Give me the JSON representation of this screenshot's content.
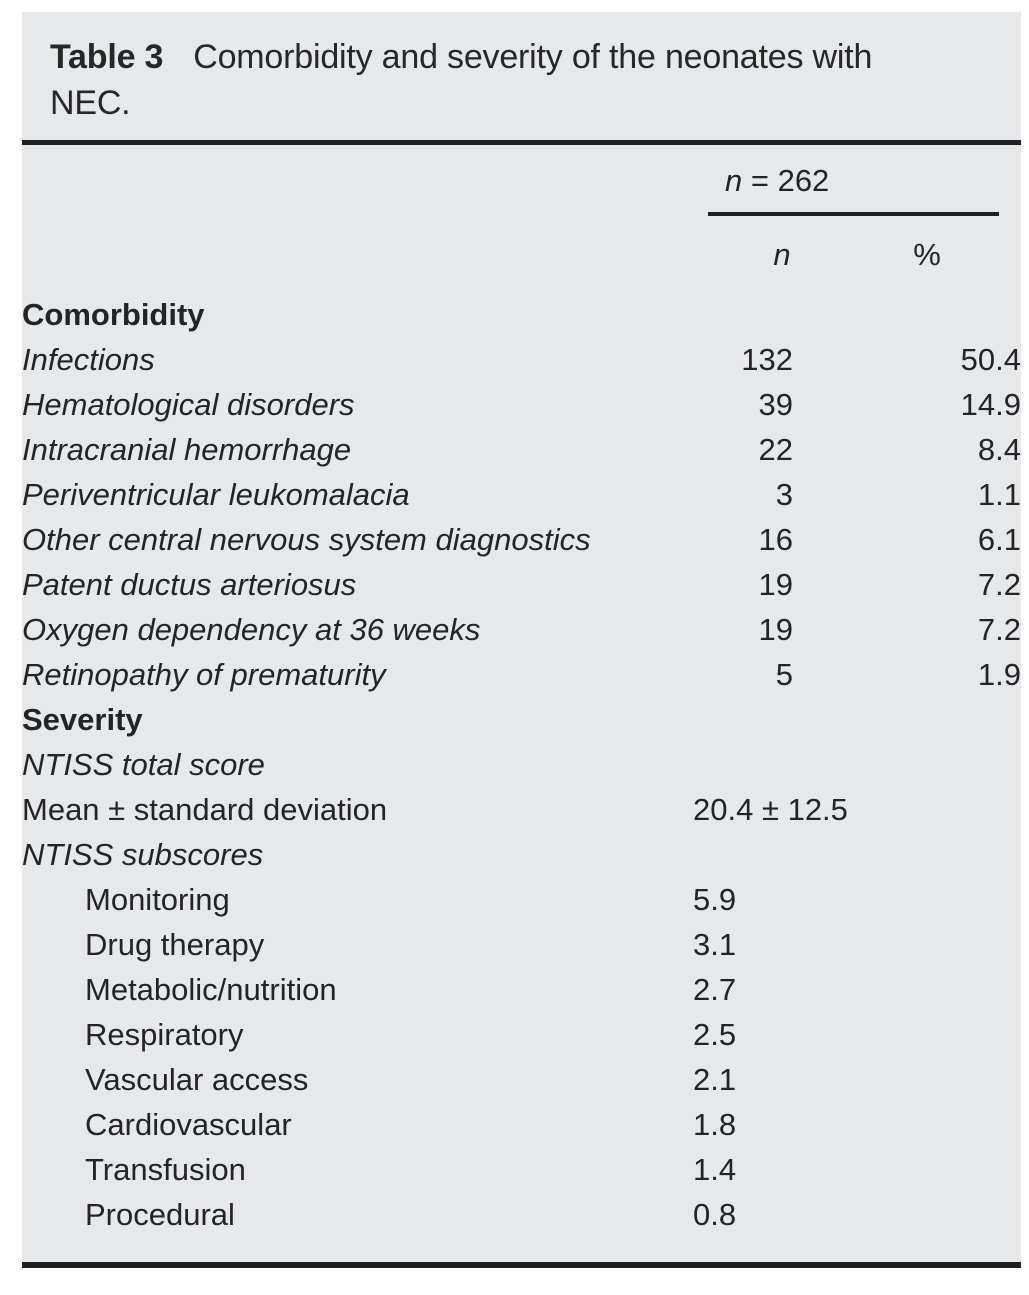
{
  "table": {
    "caption": {
      "label": "Table 3",
      "text": "Comorbidity and severity of the neonates with NEC."
    },
    "group_header": {
      "symbol": "n",
      "equals_value": " = 262"
    },
    "columns": {
      "n_header": "n",
      "pct_header": "%"
    },
    "rows": [
      {
        "label": "Comorbidity",
        "style": "bold",
        "n": "",
        "pct": ""
      },
      {
        "label": "Infections",
        "style": "italic",
        "n": "132",
        "pct": "50.4"
      },
      {
        "label": "Hematological disorders",
        "style": "italic",
        "n": "39",
        "pct": "14.9"
      },
      {
        "label": "Intracranial hemorrhage",
        "style": "italic",
        "n": "22",
        "pct": "8.4"
      },
      {
        "label": "Periventricular leukomalacia",
        "style": "italic",
        "n": "3",
        "pct": "1.1"
      },
      {
        "label": "Other central nervous system diagnostics",
        "style": "italic",
        "n": "16",
        "pct": "6.1"
      },
      {
        "label": "Patent ductus arteriosus",
        "style": "italic",
        "n": "19",
        "pct": "7.2"
      },
      {
        "label": "Oxygen dependency at 36 weeks",
        "style": "italic",
        "n": "19",
        "pct": "7.2"
      },
      {
        "label": "Retinopathy of prematurity",
        "style": "italic",
        "n": "5",
        "pct": "1.9"
      },
      {
        "label": "Severity",
        "style": "bold",
        "n": "",
        "pct": ""
      },
      {
        "label": "NTISS total score",
        "style": "italic",
        "n": "",
        "pct": ""
      },
      {
        "label": "Mean ± standard deviation",
        "style": "regular",
        "span": "20.4 ± 12.5"
      },
      {
        "label": "NTISS subscores",
        "style": "italic",
        "n": "",
        "pct": ""
      },
      {
        "label": "Monitoring",
        "style": "indent",
        "span": "5.9"
      },
      {
        "label": "Drug therapy",
        "style": "indent",
        "span": "3.1"
      },
      {
        "label": "Metabolic/nutrition",
        "style": "indent",
        "span": "2.7"
      },
      {
        "label": "Respiratory",
        "style": "indent",
        "span": "2.5"
      },
      {
        "label": "Vascular access",
        "style": "indent",
        "span": "2.1"
      },
      {
        "label": "Cardiovascular",
        "style": "indent",
        "span": "1.8"
      },
      {
        "label": "Transfusion",
        "style": "indent",
        "span": "1.4"
      },
      {
        "label": "Procedural",
        "style": "indent",
        "span": "0.8"
      }
    ]
  }
}
